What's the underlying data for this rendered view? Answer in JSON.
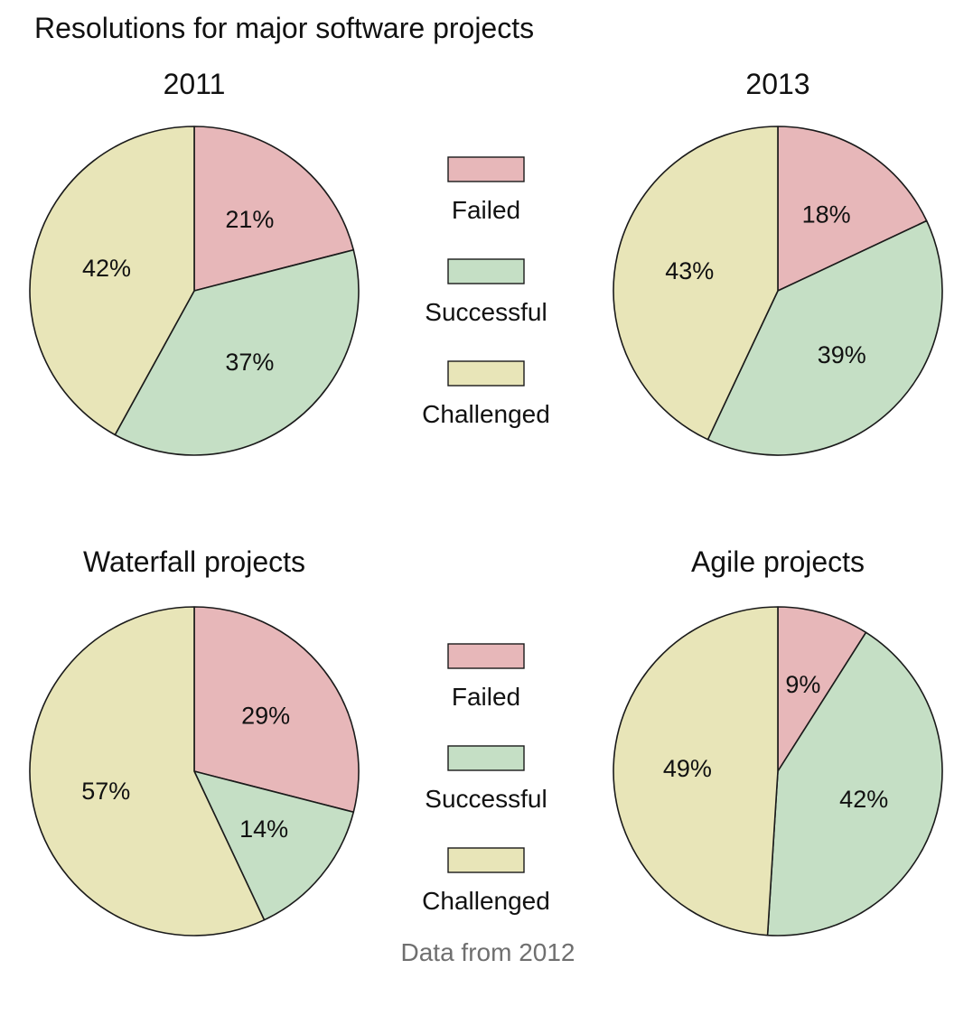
{
  "figure": {
    "title": "Resolutions for major software projects",
    "note": "Data from 2012"
  },
  "colors": {
    "Failed": "#e7b7b9",
    "Successful": "#c5dfc5",
    "Challenged": "#e8e5b8",
    "stroke": "#1a1a1a"
  },
  "legend": [
    {
      "items": [
        "Failed",
        "Successful",
        "Challenged"
      ]
    },
    {
      "items": [
        "Failed",
        "Successful",
        "Challenged"
      ]
    }
  ],
  "chart_data": [
    {
      "type": "pie",
      "title": "2011",
      "slices": [
        {
          "label": "Failed",
          "value": 21,
          "text": "21%"
        },
        {
          "label": "Successful",
          "value": 37,
          "text": "37%"
        },
        {
          "label": "Challenged",
          "value": 42,
          "text": "42%"
        }
      ]
    },
    {
      "type": "pie",
      "title": "2013",
      "slices": [
        {
          "label": "Failed",
          "value": 18,
          "text": "18%"
        },
        {
          "label": "Successful",
          "value": 39,
          "text": "39%"
        },
        {
          "label": "Challenged",
          "value": 43,
          "text": "43%"
        }
      ]
    },
    {
      "type": "pie",
      "title": "Waterfall projects",
      "slices": [
        {
          "label": "Failed",
          "value": 29,
          "text": "29%"
        },
        {
          "label": "Successful",
          "value": 14,
          "text": "14%"
        },
        {
          "label": "Challenged",
          "value": 57,
          "text": "57%"
        }
      ]
    },
    {
      "type": "pie",
      "title": "Agile projects",
      "slices": [
        {
          "label": "Failed",
          "value": 9,
          "text": "9%"
        },
        {
          "label": "Successful",
          "value": 42,
          "text": "42%"
        },
        {
          "label": "Challenged",
          "value": 49,
          "text": "49%"
        }
      ]
    }
  ]
}
